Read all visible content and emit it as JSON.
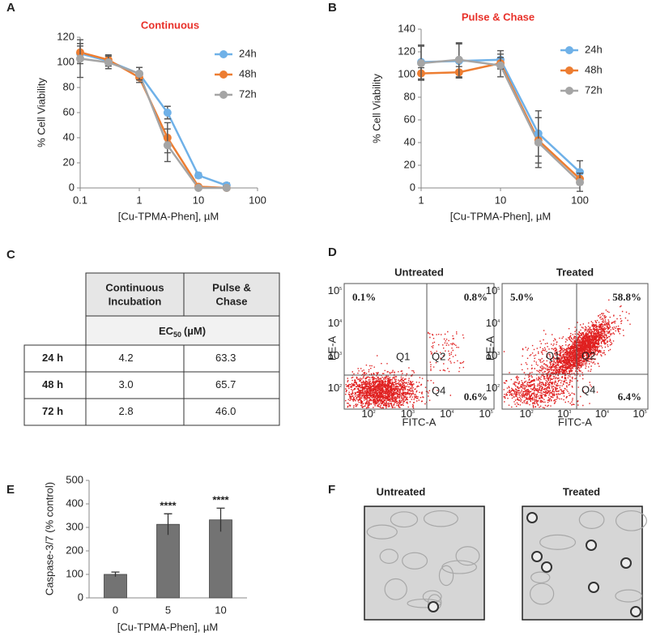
{
  "chart_data": [
    {
      "type": "line",
      "panel": "A",
      "title": "Continuous",
      "title_color": "#e8312a",
      "x_label": "[Cu-TPMA-Phen], µM",
      "y_label": "% Cell Viability",
      "log_x": true,
      "legend": "upper right",
      "x": [
        0.1,
        0.3,
        1,
        3,
        10,
        30
      ],
      "xlim": [
        0.1,
        100
      ],
      "xticks": [
        0.1,
        1,
        10,
        100
      ],
      "ylim": [
        0,
        120
      ],
      "yticks": [
        0,
        20,
        40,
        60,
        80,
        100,
        120
      ],
      "series": [
        {
          "name": "24h",
          "color": "#6fb1e8",
          "values": [
            107,
            101,
            91,
            60,
            10,
            2
          ],
          "errors": [
            8,
            4,
            5,
            5,
            2,
            2
          ]
        },
        {
          "name": "48h",
          "color": "#ed7d31",
          "values": [
            108,
            102,
            88,
            40,
            1,
            0
          ],
          "errors": [
            5,
            4,
            4,
            12,
            1,
            1
          ]
        },
        {
          "name": "72h",
          "color": "#a5a5a5",
          "values": [
            103,
            100,
            91,
            34,
            0,
            0
          ],
          "errors": [
            15,
            5,
            5,
            13,
            1,
            1
          ]
        }
      ]
    },
    {
      "type": "line",
      "panel": "B",
      "title": "Pulse & Chase",
      "title_color": "#e8312a",
      "x_label": "[Cu-TPMA-Phen], µM",
      "y_label": "% Cell Viability",
      "log_x": true,
      "legend": "upper right",
      "x": [
        1,
        3,
        10,
        30,
        100
      ],
      "xlim": [
        1,
        100
      ],
      "xticks": [
        1,
        10,
        100
      ],
      "ylim": [
        0,
        140
      ],
      "yticks": [
        0,
        20,
        40,
        60,
        80,
        100,
        120,
        140
      ],
      "series": [
        {
          "name": "24h",
          "color": "#6fb1e8",
          "values": [
            111,
            112,
            113,
            48,
            14
          ],
          "errors": [
            15,
            15,
            8,
            20,
            10
          ]
        },
        {
          "name": "48h",
          "color": "#ed7d31",
          "values": [
            101,
            102,
            110,
            42,
            8
          ],
          "errors": [
            5,
            5,
            5,
            20,
            5
          ]
        },
        {
          "name": "72h",
          "color": "#a5a5a5",
          "values": [
            110,
            113,
            108,
            40,
            5
          ],
          "errors": [
            15,
            15,
            10,
            22,
            8
          ]
        }
      ]
    },
    {
      "type": "bar",
      "panel": "E",
      "x_label": "[Cu-TPMA-Phen], µM",
      "y_label": "Caspase-3/7 (% control)",
      "categories": [
        "0",
        "5",
        "10"
      ],
      "values": [
        100,
        313,
        332
      ],
      "errors": [
        10,
        45,
        50
      ],
      "significance": [
        null,
        "****",
        "****"
      ],
      "color": "#737373",
      "ylim": [
        0,
        500
      ],
      "yticks": [
        0,
        100,
        200,
        300,
        400,
        500
      ]
    }
  ],
  "table": {
    "panel": "C",
    "header": [
      [
        "Continuous",
        "Incubation"
      ],
      [
        "Pulse &",
        "Chase"
      ]
    ],
    "ec": {
      "text": "EC",
      "sub": "50",
      "unit": "(µM)"
    },
    "rows": [
      [
        "24 h",
        "4.2",
        "63.3"
      ],
      [
        "48 h",
        "3.0",
        "65.7"
      ],
      [
        "72 h",
        "2.8",
        "46.0"
      ]
    ]
  },
  "flow": {
    "panel": "D",
    "y_label": "PE-A",
    "x_label": "FITC-A",
    "quadrant_labels": [
      "Q1",
      "Q2",
      "Q4"
    ],
    "tick_base": "10",
    "tick_exponents": [
      "2",
      "3",
      "4",
      "5"
    ],
    "plots": [
      {
        "title": "Untreated",
        "q1": "0.1%",
        "q2": "0.8%",
        "q4": "0.6%"
      },
      {
        "title": "Treated",
        "q1": "5.0%",
        "q2": "58.8%",
        "q4": "6.4%"
      }
    ]
  },
  "microscopy": {
    "panel": "F",
    "titles": [
      "Untreated",
      "Treated"
    ]
  }
}
